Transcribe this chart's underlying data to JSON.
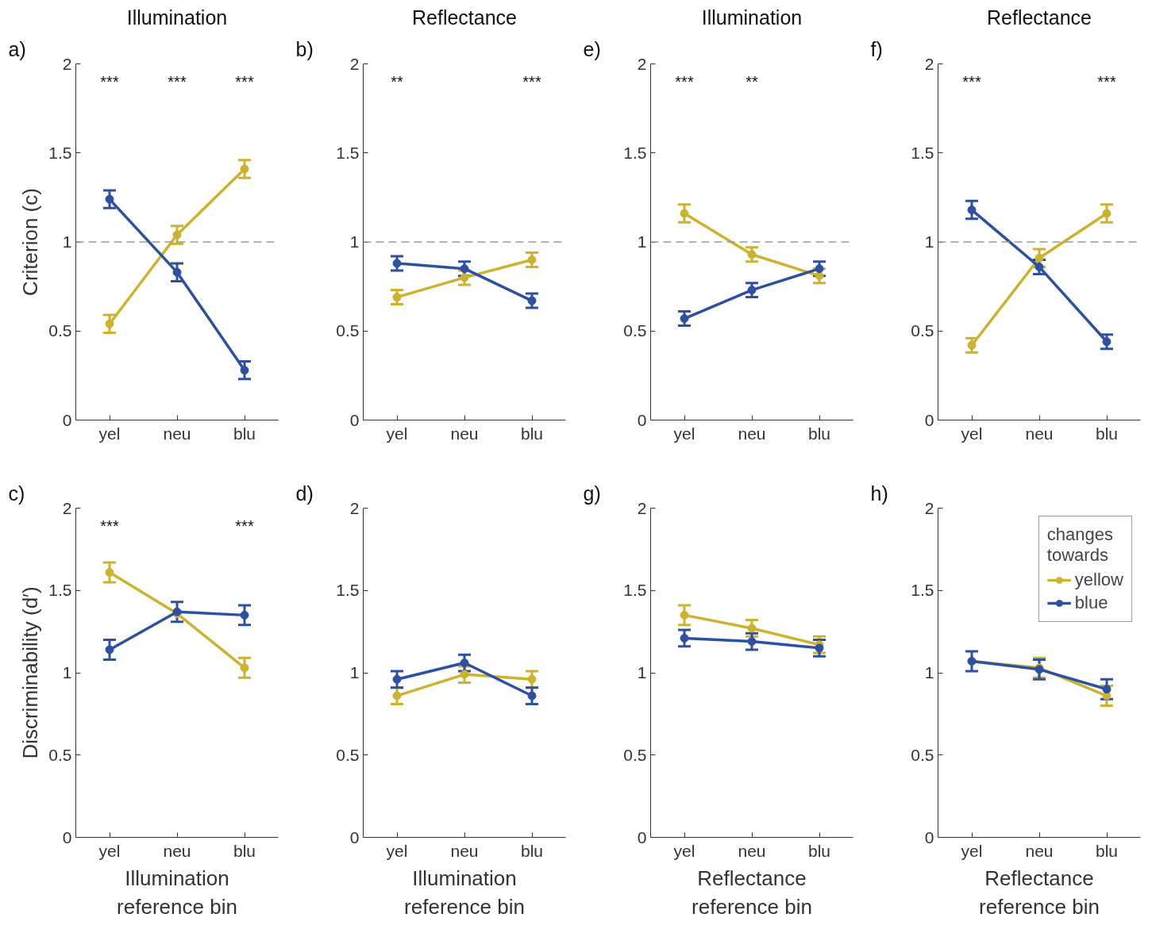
{
  "chart_data": [
    {
      "type": "line",
      "title": "Illumination",
      "categories": [
        "yel",
        "neu",
        "blu"
      ],
      "ylabel": "Criterion (c)",
      "ylim": [
        0,
        2
      ],
      "yticks": [
        0,
        0.5,
        1,
        1.5,
        2
      ],
      "marker": "circle",
      "line_style": "solid",
      "grid": false,
      "legend": false,
      "ref_lines": [
        {
          "axis": "y",
          "value": 1,
          "color": "#999999",
          "line_style": "dashed"
        }
      ],
      "annotations": [
        "a)",
        "***",
        "***",
        "***"
      ],
      "series": [
        {
          "color": "#cdb32d",
          "values": [
            0.54,
            1.04,
            1.41
          ],
          "errors": [
            0.05,
            0.05,
            0.05
          ]
        },
        {
          "color": "#2c51a3",
          "values": [
            1.24,
            0.83,
            0.28
          ],
          "errors": [
            0.05,
            0.05,
            0.05
          ]
        }
      ]
    },
    {
      "type": "line",
      "title": "Reflectance",
      "categories": [
        "yel",
        "neu",
        "blu"
      ],
      "ylim": [
        0,
        2
      ],
      "yticks": [
        0,
        0.5,
        1,
        1.5,
        2
      ],
      "marker": "circle",
      "line_style": "solid",
      "grid": false,
      "legend": false,
      "ref_lines": [
        {
          "axis": "y",
          "value": 1,
          "color": "#999999",
          "line_style": "dashed"
        }
      ],
      "annotations": [
        "b)",
        "**",
        "***"
      ],
      "series": [
        {
          "color": "#cdb32d",
          "values": [
            0.69,
            0.8,
            0.9
          ],
          "errors": [
            0.04,
            0.04,
            0.04
          ]
        },
        {
          "color": "#2c51a3",
          "values": [
            0.88,
            0.85,
            0.67
          ],
          "errors": [
            0.04,
            0.04,
            0.04
          ]
        }
      ]
    },
    {
      "type": "line",
      "title": "Illumination",
      "categories": [
        "yel",
        "neu",
        "blu"
      ],
      "ylim": [
        0,
        2
      ],
      "yticks": [
        0,
        0.5,
        1,
        1.5,
        2
      ],
      "marker": "circle",
      "line_style": "solid",
      "grid": false,
      "legend": false,
      "ref_lines": [
        {
          "axis": "y",
          "value": 1,
          "color": "#999999",
          "line_style": "dashed"
        }
      ],
      "annotations": [
        "e)",
        "***",
        "**"
      ],
      "series": [
        {
          "color": "#cdb32d",
          "values": [
            1.16,
            0.93,
            0.81
          ],
          "errors": [
            0.05,
            0.04,
            0.04
          ]
        },
        {
          "color": "#2c51a3",
          "values": [
            0.57,
            0.73,
            0.85
          ],
          "errors": [
            0.04,
            0.04,
            0.04
          ]
        }
      ]
    },
    {
      "type": "line",
      "title": "Reflectance",
      "categories": [
        "yel",
        "neu",
        "blu"
      ],
      "ylim": [
        0,
        2
      ],
      "yticks": [
        0,
        0.5,
        1,
        1.5,
        2
      ],
      "marker": "circle",
      "line_style": "solid",
      "grid": false,
      "legend": false,
      "ref_lines": [
        {
          "axis": "y",
          "value": 1,
          "color": "#999999",
          "line_style": "dashed"
        }
      ],
      "annotations": [
        "f)",
        "***",
        "***"
      ],
      "series": [
        {
          "color": "#cdb32d",
          "values": [
            0.42,
            0.91,
            1.16
          ],
          "errors": [
            0.04,
            0.05,
            0.05
          ]
        },
        {
          "color": "#2c51a3",
          "values": [
            1.18,
            0.86,
            0.44
          ],
          "errors": [
            0.05,
            0.04,
            0.04
          ]
        }
      ]
    },
    {
      "type": "line",
      "categories": [
        "yel",
        "neu",
        "blu"
      ],
      "xlabel": "Illumination reference bin",
      "ylabel": "Discriminability (d′)",
      "ylim": [
        0,
        2
      ],
      "yticks": [
        0,
        0.5,
        1,
        1.5,
        2
      ],
      "marker": "circle",
      "line_style": "solid",
      "grid": false,
      "legend": false,
      "annotations": [
        "c)",
        "***",
        "***"
      ],
      "series": [
        {
          "color": "#cdb32d",
          "values": [
            1.61,
            1.36,
            1.03
          ],
          "errors": [
            0.06,
            null,
            0.06
          ]
        },
        {
          "color": "#2c51a3",
          "values": [
            1.14,
            1.37,
            1.35
          ],
          "errors": [
            0.06,
            0.06,
            0.06
          ]
        }
      ]
    },
    {
      "type": "line",
      "categories": [
        "yel",
        "neu",
        "blu"
      ],
      "xlabel": "Illumination reference bin",
      "ylim": [
        0,
        2
      ],
      "yticks": [
        0,
        0.5,
        1,
        1.5,
        2
      ],
      "marker": "circle",
      "line_style": "solid",
      "grid": false,
      "legend": false,
      "annotations": [
        "d)"
      ],
      "series": [
        {
          "color": "#cdb32d",
          "values": [
            0.86,
            0.99,
            0.96
          ],
          "errors": [
            0.05,
            0.05,
            0.05
          ]
        },
        {
          "color": "#2c51a3",
          "values": [
            0.96,
            1.06,
            0.86
          ],
          "errors": [
            0.05,
            0.05,
            0.05
          ]
        }
      ]
    },
    {
      "type": "line",
      "categories": [
        "yel",
        "neu",
        "blu"
      ],
      "xlabel": "Reflectance reference bin",
      "ylim": [
        0,
        2
      ],
      "yticks": [
        0,
        0.5,
        1,
        1.5,
        2
      ],
      "marker": "circle",
      "line_style": "solid",
      "grid": false,
      "legend": false,
      "annotations": [
        "g)"
      ],
      "series": [
        {
          "color": "#cdb32d",
          "values": [
            1.35,
            1.27,
            1.17
          ],
          "errors": [
            0.06,
            0.05,
            0.05
          ]
        },
        {
          "color": "#2c51a3",
          "values": [
            1.21,
            1.19,
            1.15
          ],
          "errors": [
            0.05,
            0.05,
            0.05
          ]
        }
      ]
    },
    {
      "type": "line",
      "categories": [
        "yel",
        "neu",
        "blu"
      ],
      "xlabel": "Reflectance reference bin",
      "ylim": [
        0,
        2
      ],
      "yticks": [
        0,
        0.5,
        1,
        1.5,
        2
      ],
      "marker": "circle",
      "line_style": "solid",
      "grid": false,
      "legend": "top right",
      "legend_title": "changes towards",
      "annotations": [
        "h)"
      ],
      "series": [
        {
          "name": "yellow",
          "color": "#cdb32d",
          "values": [
            1.07,
            1.03,
            0.86
          ],
          "errors": [
            null,
            0.06,
            0.06
          ]
        },
        {
          "name": "blue",
          "color": "#2c51a3",
          "values": [
            1.07,
            1.02,
            0.9
          ],
          "errors": [
            0.06,
            0.06,
            0.06
          ]
        }
      ]
    }
  ]
}
